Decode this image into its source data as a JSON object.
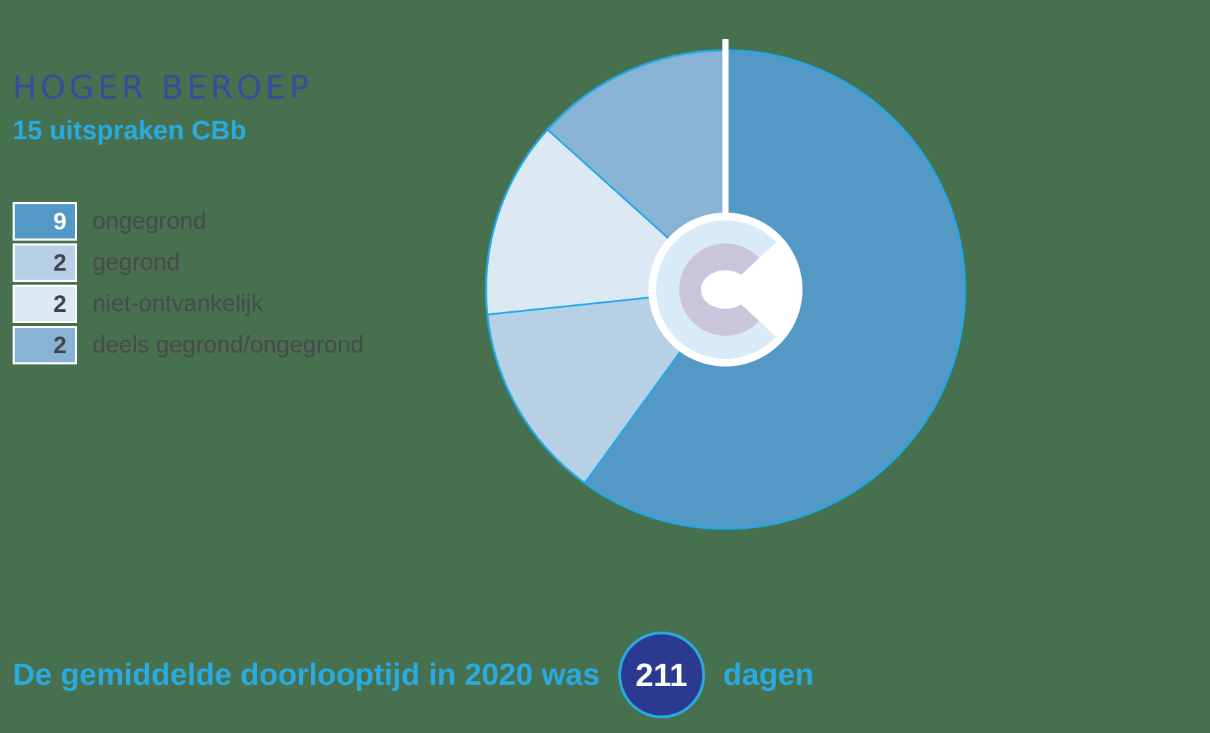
{
  "background_color": "#47704F",
  "header": {
    "title": "HOGER BEROEP",
    "subtitle": "15 uitspraken CBb"
  },
  "legend": [
    {
      "value": "9",
      "label": "ongegrond",
      "swatch_color": "#5499C6",
      "value_color": "#FFFFFF"
    },
    {
      "value": "2",
      "label": "gegrond",
      "swatch_color": "#B7D0E6",
      "value_color": "#3F4347"
    },
    {
      "value": "2",
      "label": "niet-ontvankelijk",
      "swatch_color": "#DCE8F3",
      "value_color": "#3F4347"
    },
    {
      "value": "2",
      "label": "deels gegrond/ongegrond",
      "swatch_color": "#89B3D4",
      "value_color": "#3F4347"
    }
  ],
  "chart_data": {
    "type": "pie",
    "title": "HOGER BEROEP",
    "subtitle": "15 uitspraken CBb",
    "total": 15,
    "start_angle_deg": 0,
    "direction": "clockwise",
    "segments": [
      {
        "label": "ongegrond",
        "value": 9,
        "color": "#5499C6"
      },
      {
        "label": "gegrond",
        "value": 2,
        "color": "#B7D0E6"
      },
      {
        "label": "niet-ontvankelijk",
        "value": 2,
        "color": "#DCE8F3"
      },
      {
        "label": "deels gegrond/ongegrond",
        "value": 2,
        "color": "#89B3D4"
      }
    ],
    "outline_color": "#1FA9E8",
    "divider": {
      "angle_deg": 0,
      "color": "#FFFFFF"
    },
    "center_logo": {
      "name": "cbb-logo",
      "ring_color": "#FFFFFF",
      "disc_color": "#D9EAF8",
      "c_color": "#CBC5DC",
      "cutout_color": "#FFFFFF"
    },
    "legend_position": "left",
    "grid": false
  },
  "footer": {
    "text_before": "De gemiddelde doorlooptijd in 2020 was",
    "badge_value": "211",
    "text_after": "dagen",
    "badge_bg": "#2B3990",
    "badge_border": "#29ABE2",
    "text_color": "#29ABE2"
  },
  "colors": {
    "title": "#3B4A9C",
    "accent_cyan": "#29ABE2",
    "legend_label": "#47494B",
    "background": "#47704F"
  }
}
